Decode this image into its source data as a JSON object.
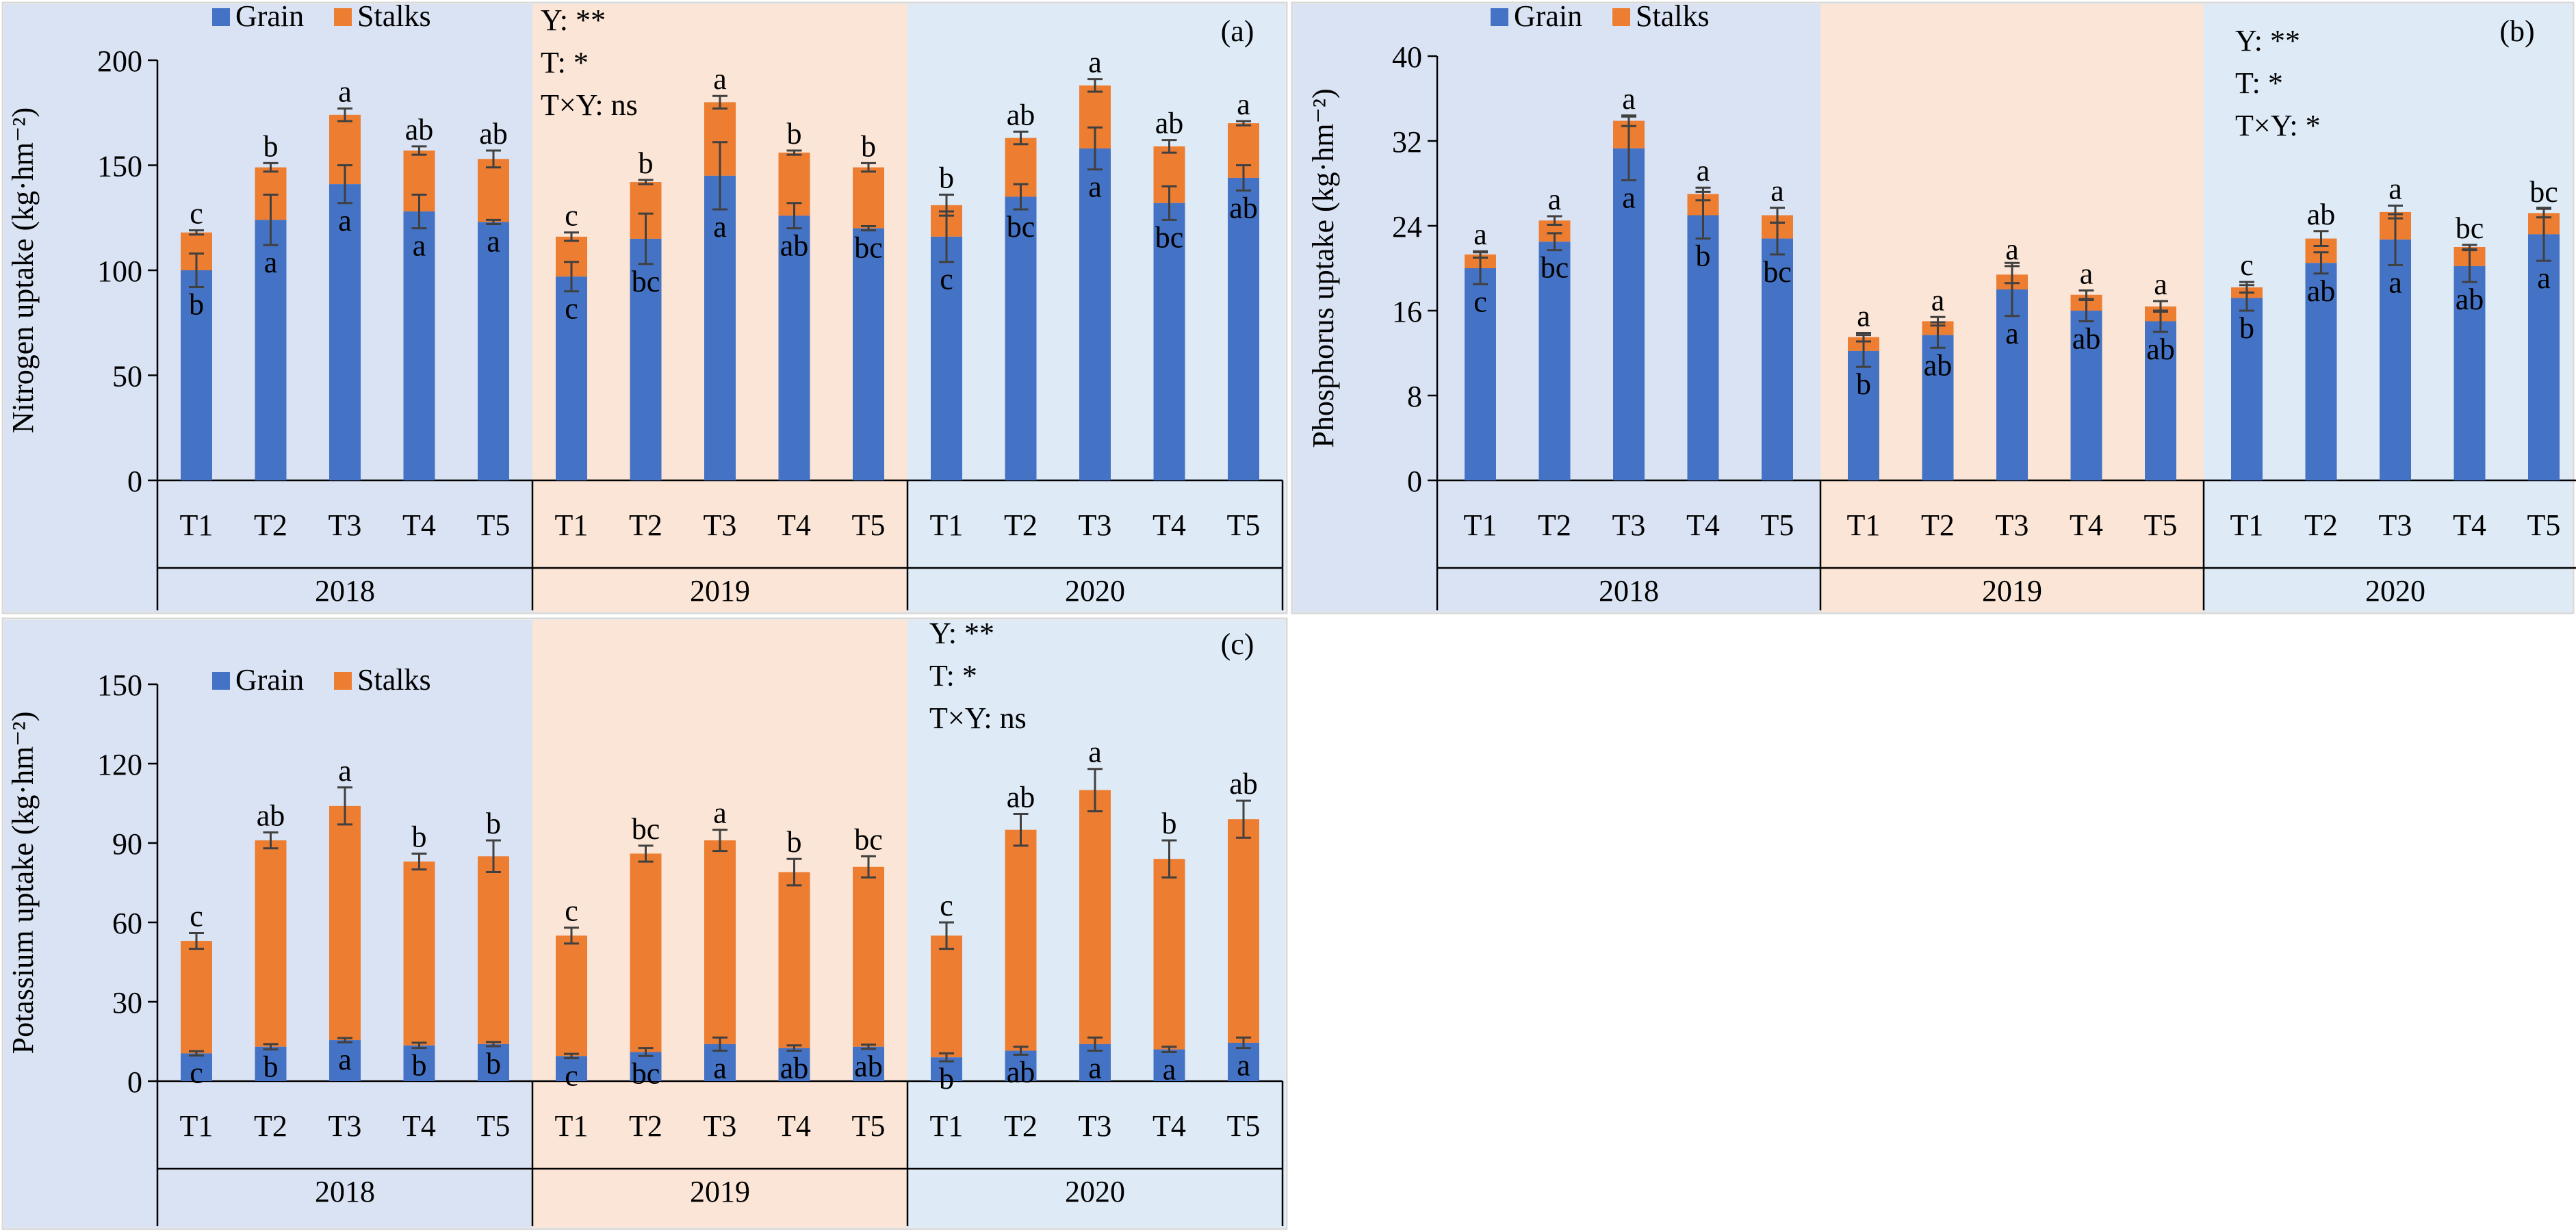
{
  "colors": {
    "grain": "#4472C4",
    "stalks": "#ED7D31",
    "bg_2018": "#DAE3F3",
    "bg_2019": "#FBE5D6",
    "bg_2020": "#DEEBF7",
    "errorbar": "#404040"
  },
  "legend": {
    "grain": "Grain",
    "stalks": "Stalks"
  },
  "chart_data": [
    {
      "id": "a",
      "type": "bar",
      "stacked": true,
      "panel_label": "(a)",
      "ylabel": "Nitrogen uptake (kg·hm⁻²)",
      "ylim": [
        0,
        200
      ],
      "yticks": [
        0,
        50,
        100,
        150,
        200
      ],
      "years": [
        "2018",
        "2019",
        "2020"
      ],
      "categories": [
        "T1",
        "T2",
        "T3",
        "T4",
        "T5"
      ],
      "stats": [
        "Y: **",
        "T: *",
        "T×Y: ns"
      ],
      "stats_year": "2019",
      "series": [
        {
          "name": "Grain",
          "values": [
            [
              100,
              124,
              141,
              128,
              123
            ],
            [
              97,
              115,
              145,
              126,
              120
            ],
            [
              116,
              135,
              158,
              132,
              144
            ]
          ],
          "errors": [
            [
              8,
              12,
              9,
              8,
              1
            ],
            [
              7,
              12,
              16,
              6,
              1
            ],
            [
              12,
              6,
              10,
              8,
              6
            ]
          ],
          "letters": [
            [
              "b",
              "a",
              "a",
              "a",
              "a"
            ],
            [
              "c",
              "bc",
              "a",
              "ab",
              "bc"
            ],
            [
              "c",
              "bc",
              "a",
              "bc",
              "ab"
            ]
          ]
        },
        {
          "name": "Stalks",
          "totals": [
            [
              118,
              149,
              174,
              157,
              153
            ],
            [
              116,
              142,
              180,
              156,
              149
            ],
            [
              131,
              163,
              188,
              159,
              170
            ]
          ],
          "errors": [
            [
              1,
              2,
              3,
              2,
              4
            ],
            [
              2,
              1,
              3,
              1,
              2
            ],
            [
              5,
              3,
              3,
              3,
              1
            ]
          ],
          "letters": [
            [
              "c",
              "b",
              "a",
              "ab",
              "ab"
            ],
            [
              "c",
              "b",
              "a",
              "b",
              "b"
            ],
            [
              "b",
              "ab",
              "a",
              "ab",
              "a"
            ]
          ]
        }
      ]
    },
    {
      "id": "b",
      "type": "bar",
      "stacked": true,
      "panel_label": "(b)",
      "ylabel": "Phosphorus uptake (kg·hm⁻²)",
      "ylim": [
        0,
        40
      ],
      "yticks": [
        0,
        8,
        16,
        24,
        32,
        40
      ],
      "years": [
        "2018",
        "2019",
        "2020"
      ],
      "categories": [
        "T1",
        "T2",
        "T3",
        "T4",
        "T5"
      ],
      "stats": [
        "Y: **",
        "T: *",
        "T×Y: *"
      ],
      "stats_year": "2020",
      "series": [
        {
          "name": "Grain",
          "values": [
            [
              20,
              22.5,
              31.3,
              25,
              22.8
            ],
            [
              12.2,
              13.7,
              18,
              16,
              15
            ],
            [
              17.2,
              20.5,
              22.7,
              20.2,
              23.2
            ]
          ],
          "errors": [
            [
              1.5,
              0.8,
              3,
              2.2,
              1.5
            ],
            [
              1.5,
              1.2,
              2.5,
              1,
              1
            ],
            [
              1.2,
              1,
              2.4,
              1.5,
              2.5
            ]
          ],
          "letters": [
            [
              "c",
              "bc",
              "a",
              "b",
              "bc"
            ],
            [
              "b",
              "ab",
              "a",
              "ab",
              "ab"
            ],
            [
              "b",
              "ab",
              "a",
              "ab",
              "a"
            ]
          ]
        },
        {
          "name": "Stalks",
          "totals": [
            [
              21.3,
              24.5,
              33.9,
              27,
              25
            ],
            [
              13.5,
              15,
              19.4,
              17.5,
              16.4
            ],
            [
              18.2,
              22.8,
              25.3,
              22,
              25.2
            ]
          ],
          "errors": [
            [
              0.3,
              0.4,
              0.5,
              0.6,
              0.7
            ],
            [
              0.4,
              0.4,
              0.8,
              0.4,
              0.5
            ],
            [
              0.5,
              0.7,
              0.6,
              0.2,
              0.4
            ]
          ],
          "letters": [
            [
              "a",
              "a",
              "a",
              "a",
              "a"
            ],
            [
              "a",
              "a",
              "a",
              "a",
              "a"
            ],
            [
              "c",
              "ab",
              "a",
              "bc",
              "bc"
            ]
          ]
        }
      ]
    },
    {
      "id": "c",
      "type": "bar",
      "stacked": true,
      "panel_label": "(c)",
      "ylabel": "Potassium uptake (kg·hm⁻²)",
      "ylim": [
        0,
        150
      ],
      "yticks": [
        0,
        30,
        60,
        90,
        120,
        150
      ],
      "years": [
        "2018",
        "2019",
        "2020"
      ],
      "categories": [
        "T1",
        "T2",
        "T3",
        "T4",
        "T5"
      ],
      "stats": [
        "Y: **",
        "T: *",
        "T×Y: ns"
      ],
      "stats_year": "2020",
      "series": [
        {
          "name": "Grain",
          "values": [
            [
              10.5,
              13,
              15.5,
              13.5,
              14
            ],
            [
              9.5,
              11,
              14,
              12.5,
              13
            ],
            [
              9,
              11.5,
              14,
              12,
              14.5
            ]
          ],
          "errors": [
            [
              0.8,
              1,
              0.8,
              1,
              0.8
            ],
            [
              0.8,
              1.5,
              2.5,
              1,
              0.8
            ],
            [
              1.5,
              1.5,
              2.5,
              1,
              2
            ]
          ],
          "letters": [
            [
              "c",
              "b",
              "a",
              "b",
              "b"
            ],
            [
              "c",
              "bc",
              "a",
              "ab",
              "ab"
            ],
            [
              "b",
              "ab",
              "a",
              "a",
              "a"
            ]
          ]
        },
        {
          "name": "Stalks",
          "totals": [
            [
              53,
              91,
              104,
              83,
              85
            ],
            [
              55,
              86,
              91,
              79,
              81
            ],
            [
              55,
              95,
              110,
              84,
              99
            ]
          ],
          "errors": [
            [
              3,
              3,
              7,
              3,
              6
            ],
            [
              3,
              3,
              4,
              5,
              4
            ],
            [
              5,
              6,
              8,
              7,
              7
            ]
          ],
          "letters": [
            [
              "c",
              "ab",
              "a",
              "b",
              "b"
            ],
            [
              "c",
              "bc",
              "a",
              "b",
              "bc"
            ],
            [
              "c",
              "ab",
              "a",
              "b",
              "ab"
            ]
          ]
        }
      ]
    }
  ]
}
